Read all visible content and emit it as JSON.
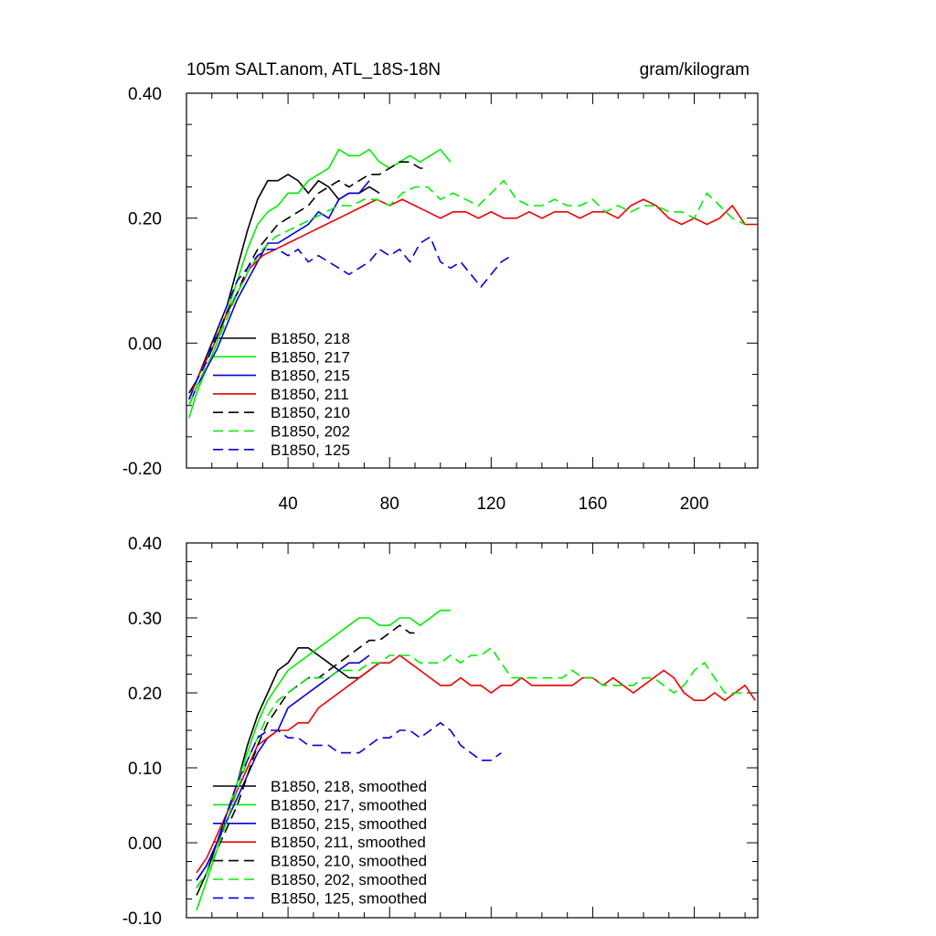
{
  "chart_data": [
    {
      "type": "line",
      "title": "105m SALT.anom, ATL_18S-18N",
      "units": "gram/kilogram",
      "xlim": [
        0,
        225
      ],
      "ylim": [
        -0.2,
        0.4
      ],
      "xticks": [
        40,
        80,
        120,
        160,
        200
      ],
      "xtick_labels": [
        "40",
        "80",
        "120",
        "160",
        "200"
      ],
      "yticks": [
        -0.2,
        0.0,
        0.2,
        0.4
      ],
      "ytick_labels": [
        "-0.20",
        "0.00",
        "0.20",
        "0.40"
      ],
      "legend_position": "bottom-left",
      "series": [
        {
          "name": "B1850, 218",
          "color": "#000000",
          "dash": "solid",
          "x": [
            1,
            4,
            8,
            12,
            16,
            20,
            24,
            28,
            32,
            36,
            40,
            44,
            48,
            52,
            56,
            60,
            64,
            68,
            72,
            76
          ],
          "values": [
            -0.08,
            -0.06,
            -0.02,
            0.02,
            0.06,
            0.12,
            0.18,
            0.23,
            0.26,
            0.26,
            0.27,
            0.26,
            0.24,
            0.26,
            0.25,
            0.23,
            0.24,
            0.24,
            0.25,
            0.24
          ]
        },
        {
          "name": "B1850, 217",
          "color": "#00ee00",
          "dash": "solid",
          "x": [
            1,
            4,
            8,
            12,
            16,
            20,
            24,
            28,
            32,
            36,
            40,
            44,
            48,
            52,
            56,
            60,
            64,
            68,
            72,
            76,
            80,
            84,
            88,
            92,
            96,
            100,
            104
          ],
          "values": [
            -0.12,
            -0.08,
            -0.04,
            0.0,
            0.05,
            0.1,
            0.15,
            0.19,
            0.21,
            0.22,
            0.24,
            0.24,
            0.26,
            0.27,
            0.28,
            0.31,
            0.3,
            0.3,
            0.31,
            0.29,
            0.28,
            0.29,
            0.3,
            0.29,
            0.3,
            0.31,
            0.29
          ]
        },
        {
          "name": "B1850, 215",
          "color": "#0000dd",
          "dash": "solid",
          "x": [
            1,
            4,
            8,
            12,
            16,
            20,
            24,
            28,
            32,
            36,
            40,
            44,
            48,
            52,
            56,
            60,
            64,
            68,
            72
          ],
          "values": [
            -0.1,
            -0.07,
            -0.04,
            -0.01,
            0.03,
            0.07,
            0.1,
            0.13,
            0.16,
            0.16,
            0.17,
            0.18,
            0.19,
            0.21,
            0.2,
            0.23,
            0.24,
            0.24,
            0.26
          ]
        },
        {
          "name": "B1850, 211",
          "color": "#ee0000",
          "dash": "solid",
          "x": [
            1,
            5,
            10,
            15,
            20,
            25,
            30,
            35,
            40,
            45,
            50,
            55,
            60,
            65,
            70,
            75,
            80,
            85,
            90,
            95,
            100,
            105,
            110,
            115,
            120,
            125,
            130,
            135,
            140,
            145,
            150,
            155,
            160,
            165,
            170,
            175,
            180,
            185,
            190,
            195,
            200,
            205,
            210,
            215,
            220,
            225
          ],
          "values": [
            -0.09,
            -0.05,
            -0.01,
            0.04,
            0.08,
            0.12,
            0.14,
            0.15,
            0.16,
            0.17,
            0.18,
            0.19,
            0.2,
            0.21,
            0.22,
            0.23,
            0.22,
            0.23,
            0.22,
            0.21,
            0.2,
            0.21,
            0.21,
            0.2,
            0.21,
            0.2,
            0.2,
            0.21,
            0.2,
            0.21,
            0.21,
            0.2,
            0.21,
            0.21,
            0.2,
            0.22,
            0.23,
            0.22,
            0.2,
            0.19,
            0.2,
            0.19,
            0.2,
            0.22,
            0.19,
            0.19
          ]
        },
        {
          "name": "B1850, 210",
          "color": "#000000",
          "dash": "dashed",
          "x": [
            1,
            4,
            8,
            12,
            16,
            20,
            24,
            28,
            32,
            36,
            40,
            44,
            48,
            52,
            56,
            60,
            64,
            68,
            72,
            76,
            80,
            84,
            88,
            92,
            95
          ],
          "values": [
            -0.09,
            -0.06,
            -0.03,
            0.01,
            0.05,
            0.08,
            0.12,
            0.15,
            0.17,
            0.19,
            0.2,
            0.21,
            0.22,
            0.24,
            0.25,
            0.26,
            0.25,
            0.26,
            0.27,
            0.27,
            0.28,
            0.29,
            0.29,
            0.28,
            0.28
          ]
        },
        {
          "name": "B1850, 202",
          "color": "#00ee00",
          "dash": "dashed",
          "x": [
            1,
            5,
            10,
            15,
            20,
            25,
            30,
            35,
            40,
            45,
            50,
            55,
            60,
            65,
            70,
            75,
            80,
            85,
            90,
            95,
            100,
            105,
            110,
            115,
            120,
            125,
            130,
            135,
            140,
            145,
            150,
            155,
            160,
            165,
            170,
            175,
            180,
            185,
            190,
            195,
            200,
            205,
            210,
            215,
            220
          ],
          "values": [
            -0.1,
            -0.06,
            -0.02,
            0.03,
            0.08,
            0.12,
            0.15,
            0.17,
            0.18,
            0.19,
            0.2,
            0.21,
            0.22,
            0.22,
            0.23,
            0.23,
            0.22,
            0.24,
            0.25,
            0.25,
            0.23,
            0.24,
            0.23,
            0.22,
            0.24,
            0.26,
            0.23,
            0.22,
            0.22,
            0.23,
            0.22,
            0.22,
            0.23,
            0.21,
            0.22,
            0.21,
            0.22,
            0.22,
            0.21,
            0.21,
            0.2,
            0.24,
            0.22,
            0.2,
            0.19
          ]
        },
        {
          "name": "B1850, 125",
          "color": "#0000dd",
          "dash": "dashed",
          "x": [
            1,
            4,
            8,
            12,
            16,
            20,
            24,
            28,
            32,
            36,
            40,
            44,
            48,
            52,
            56,
            60,
            64,
            68,
            72,
            76,
            80,
            84,
            88,
            92,
            96,
            100,
            104,
            108,
            112,
            116,
            120,
            124,
            128
          ],
          "values": [
            -0.09,
            -0.06,
            -0.03,
            0.02,
            0.06,
            0.1,
            0.12,
            0.14,
            0.15,
            0.15,
            0.14,
            0.15,
            0.13,
            0.14,
            0.13,
            0.12,
            0.11,
            0.12,
            0.13,
            0.15,
            0.14,
            0.15,
            0.13,
            0.16,
            0.17,
            0.13,
            0.12,
            0.13,
            0.11,
            0.09,
            0.11,
            0.13,
            0.14
          ]
        }
      ]
    },
    {
      "type": "line",
      "title": "",
      "xlim": [
        0,
        225
      ],
      "ylim": [
        -0.1,
        0.4
      ],
      "yticks": [
        -0.1,
        0.0,
        0.1,
        0.2,
        0.3,
        0.4
      ],
      "ytick_labels": [
        "-0.10",
        "0.00",
        "0.10",
        "0.20",
        "0.30",
        "0.40"
      ],
      "legend_position": "bottom-left",
      "series": [
        {
          "name": "B1850, 218, smoothed",
          "color": "#000000",
          "dash": "solid",
          "x": [
            4,
            8,
            12,
            16,
            20,
            24,
            28,
            32,
            36,
            40,
            44,
            48,
            52,
            56,
            60,
            64,
            68,
            72,
            76
          ],
          "values": [
            -0.07,
            -0.04,
            0.0,
            0.04,
            0.08,
            0.13,
            0.17,
            0.2,
            0.23,
            0.24,
            0.26,
            0.26,
            0.25,
            0.24,
            0.23,
            0.22,
            0.22,
            0.23,
            0.24
          ]
        },
        {
          "name": "B1850, 217, smoothed",
          "color": "#00ee00",
          "dash": "solid",
          "x": [
            4,
            8,
            12,
            16,
            20,
            24,
            28,
            32,
            36,
            40,
            44,
            48,
            52,
            56,
            60,
            64,
            68,
            72,
            76,
            80,
            84,
            88,
            92,
            96,
            100,
            104
          ],
          "values": [
            -0.09,
            -0.05,
            -0.01,
            0.04,
            0.08,
            0.12,
            0.16,
            0.19,
            0.21,
            0.23,
            0.24,
            0.25,
            0.26,
            0.27,
            0.28,
            0.29,
            0.3,
            0.3,
            0.29,
            0.29,
            0.3,
            0.3,
            0.29,
            0.3,
            0.31,
            0.31
          ]
        },
        {
          "name": "B1850, 215, smoothed",
          "color": "#0000dd",
          "dash": "solid",
          "x": [
            4,
            8,
            12,
            16,
            20,
            24,
            28,
            32,
            36,
            40,
            44,
            48,
            52,
            56,
            60,
            64,
            68,
            72
          ],
          "values": [
            -0.05,
            -0.03,
            0.0,
            0.03,
            0.06,
            0.09,
            0.12,
            0.14,
            0.15,
            0.18,
            0.19,
            0.2,
            0.21,
            0.22,
            0.23,
            0.24,
            0.24,
            0.25
          ]
        },
        {
          "name": "B1850, 211, smoothed",
          "color": "#ee0000",
          "dash": "solid",
          "x": [
            4,
            8,
            12,
            16,
            20,
            24,
            28,
            32,
            36,
            40,
            44,
            48,
            52,
            56,
            60,
            64,
            68,
            72,
            76,
            80,
            84,
            88,
            92,
            96,
            100,
            104,
            108,
            112,
            116,
            120,
            124,
            128,
            132,
            136,
            140,
            144,
            148,
            152,
            156,
            160,
            164,
            168,
            172,
            176,
            180,
            184,
            188,
            192,
            196,
            200,
            204,
            208,
            212,
            216,
            220,
            224
          ],
          "values": [
            -0.04,
            -0.02,
            0.01,
            0.04,
            0.07,
            0.1,
            0.13,
            0.14,
            0.15,
            0.15,
            0.16,
            0.16,
            0.18,
            0.19,
            0.2,
            0.21,
            0.22,
            0.23,
            0.24,
            0.24,
            0.25,
            0.24,
            0.23,
            0.22,
            0.21,
            0.21,
            0.22,
            0.21,
            0.21,
            0.2,
            0.21,
            0.21,
            0.22,
            0.21,
            0.21,
            0.21,
            0.21,
            0.21,
            0.22,
            0.22,
            0.21,
            0.22,
            0.21,
            0.2,
            0.21,
            0.22,
            0.23,
            0.22,
            0.2,
            0.19,
            0.19,
            0.2,
            0.19,
            0.2,
            0.21,
            0.19
          ]
        },
        {
          "name": "B1850, 210, smoothed",
          "color": "#000000",
          "dash": "dashed",
          "x": [
            4,
            8,
            12,
            16,
            20,
            24,
            28,
            32,
            36,
            40,
            44,
            48,
            52,
            56,
            60,
            64,
            68,
            72,
            76,
            80,
            84,
            88,
            92
          ],
          "values": [
            -0.06,
            -0.04,
            -0.01,
            0.02,
            0.05,
            0.09,
            0.13,
            0.16,
            0.18,
            0.2,
            0.21,
            0.22,
            0.22,
            0.23,
            0.24,
            0.25,
            0.26,
            0.27,
            0.27,
            0.28,
            0.29,
            0.28,
            0.28
          ]
        },
        {
          "name": "B1850, 202, smoothed",
          "color": "#00ee00",
          "dash": "dashed",
          "x": [
            4,
            8,
            12,
            16,
            20,
            24,
            28,
            32,
            36,
            40,
            44,
            48,
            52,
            56,
            60,
            64,
            68,
            72,
            76,
            80,
            84,
            88,
            92,
            96,
            100,
            104,
            108,
            112,
            116,
            120,
            124,
            128,
            132,
            136,
            140,
            144,
            148,
            152,
            156,
            160,
            164,
            168,
            172,
            176,
            180,
            184,
            188,
            192,
            196,
            200,
            204,
            208,
            212,
            216,
            220
          ],
          "values": [
            -0.06,
            -0.04,
            -0.01,
            0.03,
            0.07,
            0.11,
            0.14,
            0.17,
            0.19,
            0.2,
            0.21,
            0.22,
            0.22,
            0.22,
            0.23,
            0.23,
            0.23,
            0.24,
            0.24,
            0.25,
            0.25,
            0.25,
            0.24,
            0.24,
            0.24,
            0.25,
            0.24,
            0.25,
            0.25,
            0.26,
            0.24,
            0.22,
            0.22,
            0.22,
            0.22,
            0.22,
            0.22,
            0.23,
            0.22,
            0.22,
            0.21,
            0.21,
            0.21,
            0.21,
            0.22,
            0.22,
            0.21,
            0.2,
            0.21,
            0.23,
            0.24,
            0.22,
            0.2,
            0.2,
            0.2
          ]
        },
        {
          "name": "B1850, 125, smoothed",
          "color": "#0000dd",
          "dash": "dashed",
          "x": [
            4,
            8,
            12,
            16,
            20,
            24,
            28,
            32,
            36,
            40,
            44,
            48,
            52,
            56,
            60,
            64,
            68,
            72,
            76,
            80,
            84,
            88,
            92,
            96,
            100,
            104,
            108,
            112,
            116,
            120,
            124
          ],
          "values": [
            -0.05,
            -0.03,
            0.0,
            0.04,
            0.08,
            0.11,
            0.14,
            0.15,
            0.15,
            0.14,
            0.14,
            0.13,
            0.13,
            0.13,
            0.12,
            0.12,
            0.12,
            0.13,
            0.14,
            0.14,
            0.15,
            0.15,
            0.14,
            0.15,
            0.16,
            0.15,
            0.13,
            0.12,
            0.11,
            0.11,
            0.12
          ]
        }
      ]
    }
  ]
}
